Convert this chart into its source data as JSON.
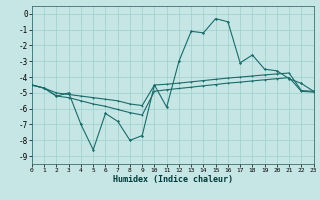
{
  "xlabel": "Humidex (Indice chaleur)",
  "xlim": [
    0,
    23
  ],
  "ylim": [
    -9.5,
    0.5
  ],
  "bg_color": "#c5e6e4",
  "grid_color": "#9ecece",
  "line_color": "#1a6b6a",
  "xticks": [
    0,
    1,
    2,
    3,
    4,
    5,
    6,
    7,
    8,
    9,
    10,
    11,
    12,
    13,
    14,
    15,
    16,
    17,
    18,
    19,
    20,
    21,
    22,
    23
  ],
  "yticks": [
    0,
    -1,
    -2,
    -3,
    -4,
    -5,
    -6,
    -7,
    -8,
    -9
  ],
  "main_x": [
    0,
    1,
    2,
    3,
    4,
    5,
    6,
    7,
    8,
    9,
    10,
    11,
    12,
    13,
    14,
    15,
    16,
    17,
    18,
    19,
    20,
    21,
    22,
    23
  ],
  "main_y": [
    -4.5,
    -4.7,
    -5.2,
    -5.0,
    -7.0,
    -8.6,
    -6.3,
    -6.8,
    -8.0,
    -7.7,
    -4.5,
    -5.9,
    -3.0,
    -1.1,
    -1.2,
    -0.3,
    -0.5,
    -3.1,
    -2.6,
    -3.5,
    -3.6,
    -4.1,
    -4.4,
    -4.9
  ],
  "upper_x": [
    0,
    1,
    2,
    3,
    4,
    5,
    6,
    7,
    8,
    9,
    10,
    11,
    12,
    13,
    14,
    15,
    16,
    17,
    18,
    19,
    20,
    21,
    22,
    23
  ],
  "upper_y": [
    -4.5,
    -4.7,
    -5.0,
    -5.1,
    -5.2,
    -5.3,
    -5.4,
    -5.5,
    -5.7,
    -5.8,
    -4.5,
    -4.45,
    -4.38,
    -4.3,
    -4.22,
    -4.14,
    -4.06,
    -4.0,
    -3.93,
    -3.86,
    -3.8,
    -3.74,
    -4.85,
    -4.9
  ],
  "lower_x": [
    0,
    1,
    2,
    3,
    4,
    5,
    6,
    7,
    8,
    9,
    10,
    11,
    12,
    13,
    14,
    15,
    16,
    17,
    18,
    19,
    20,
    21,
    22,
    23
  ],
  "lower_y": [
    -4.5,
    -4.7,
    -5.2,
    -5.3,
    -5.5,
    -5.7,
    -5.85,
    -6.05,
    -6.25,
    -6.4,
    -4.9,
    -4.8,
    -4.72,
    -4.64,
    -4.55,
    -4.47,
    -4.38,
    -4.32,
    -4.24,
    -4.17,
    -4.1,
    -4.03,
    -4.9,
    -4.95
  ]
}
